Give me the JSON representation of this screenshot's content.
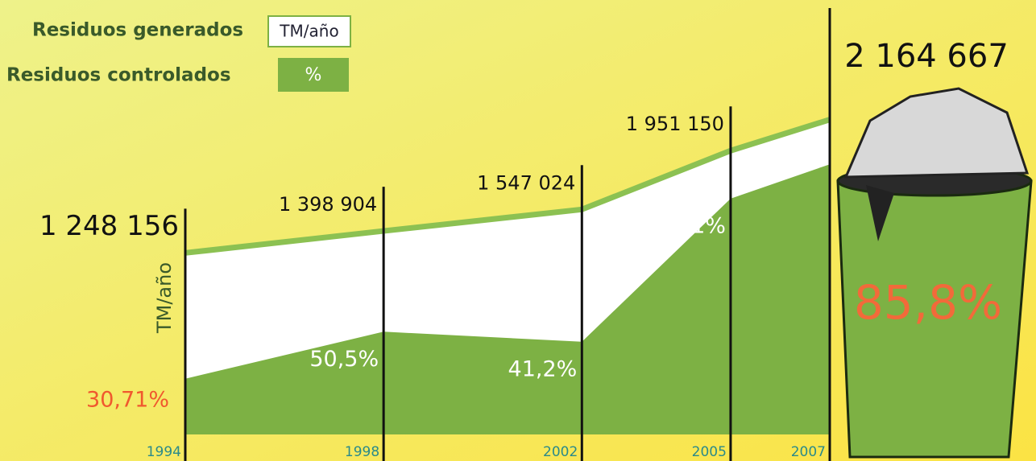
{
  "chart_data": {
    "type": "area",
    "y_label": "TM/año",
    "x": [
      1994,
      1998,
      2002,
      2005,
      2007
    ],
    "xlim": [
      1994,
      2007
    ],
    "ylim": [
      0,
      2500000
    ],
    "line_color": "#8cc152",
    "series": [
      {
        "name": "Residuos generados",
        "unit_label": "TM/año",
        "color": "#ffffff",
        "values": [
          1248156,
          1398904,
          1547024,
          1951150,
          2164667
        ],
        "value_labels": [
          "1 248 156",
          "1 398 904",
          "1 547 024",
          "1 951 150",
          "2 164 667"
        ]
      },
      {
        "name": "Residuos controlados",
        "unit_label": "%",
        "color": "#7db144",
        "values": [
          30.71,
          50.5,
          41.2,
          83.1,
          85.8
        ],
        "value_labels": [
          "30,71%",
          "50,5%",
          "41,2%",
          "83,1%",
          "85,8%"
        ]
      }
    ]
  }
}
